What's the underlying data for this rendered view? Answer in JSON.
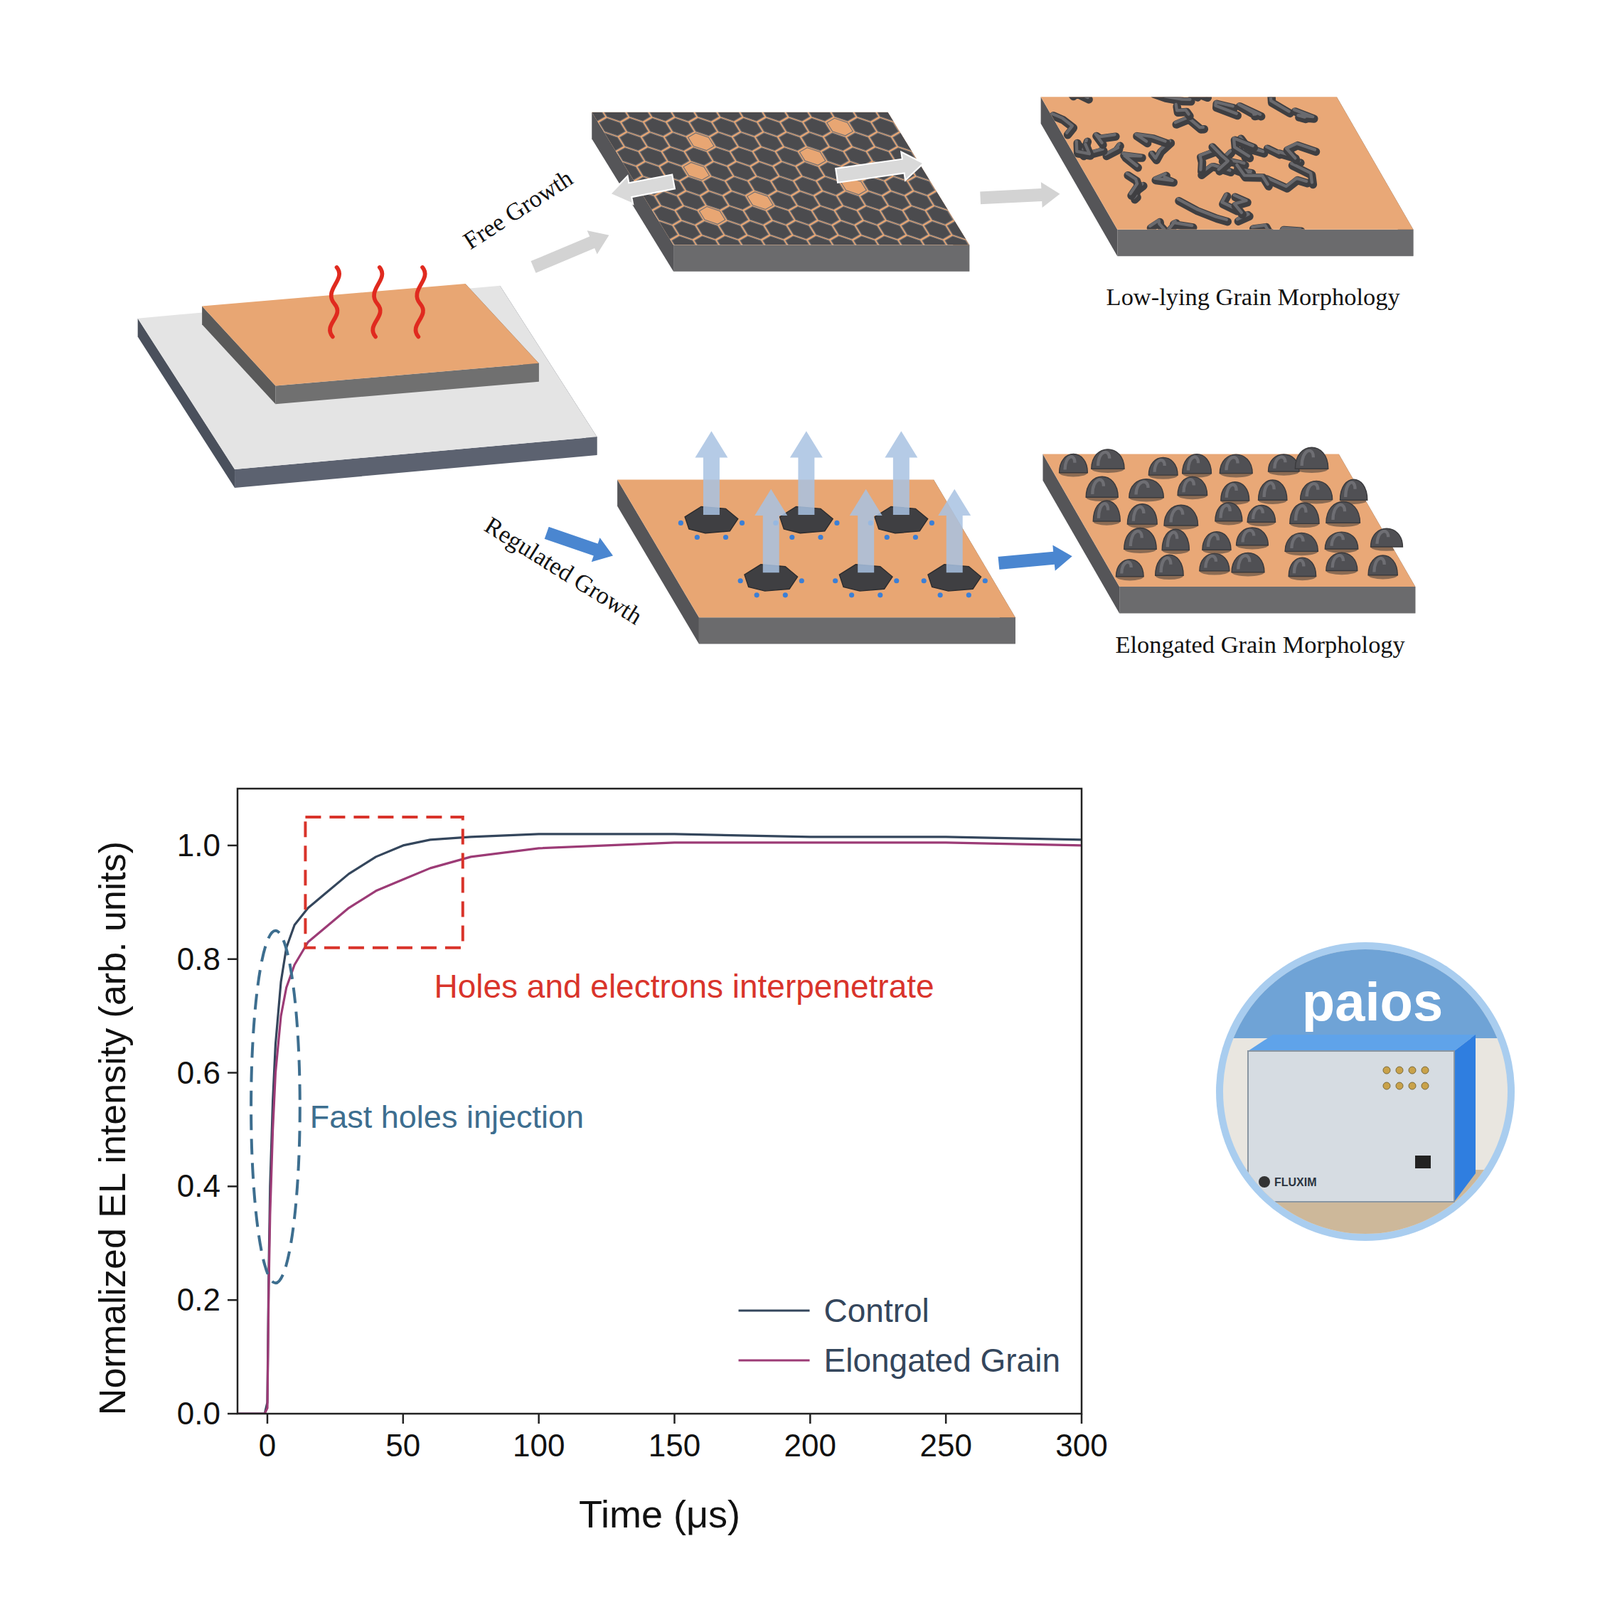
{
  "diagram": {
    "paths": [
      {
        "label": "Free Growth"
      },
      {
        "label": "Regulated Growth"
      }
    ],
    "outcomes": [
      {
        "label": "Low-lying Grain Morphology"
      },
      {
        "label": "Elongated Grain Morphology"
      }
    ]
  },
  "chart_data": {
    "type": "line",
    "x_label": "Time (μs)",
    "y_label": "Normalized EL intensity (arb. units)",
    "x": [
      -11,
      -5,
      -1,
      0,
      0.5,
      1,
      2,
      3,
      5,
      7,
      10,
      15,
      20,
      30,
      40,
      50,
      60,
      75,
      100,
      125,
      150,
      200,
      250,
      300
    ],
    "series": [
      {
        "name": "Control",
        "color": "#34465c",
        "values": [
          0,
          0,
          0,
          0.02,
          0.25,
          0.4,
          0.55,
          0.65,
          0.76,
          0.82,
          0.86,
          0.89,
          0.91,
          0.95,
          0.98,
          1.0,
          1.01,
          1.015,
          1.02,
          1.02,
          1.02,
          1.015,
          1.015,
          1.01
        ]
      },
      {
        "name": "Elongated Grain",
        "color": "#9c3b76",
        "values": [
          0,
          0,
          0,
          0.01,
          0.22,
          0.35,
          0.5,
          0.6,
          0.7,
          0.75,
          0.79,
          0.83,
          0.85,
          0.89,
          0.92,
          0.94,
          0.96,
          0.98,
          0.995,
          1.0,
          1.005,
          1.005,
          1.005,
          1.0
        ]
      }
    ],
    "xlim": [
      -11,
      300
    ],
    "ylim": [
      0,
      1.1
    ],
    "xticks": [
      0,
      50,
      100,
      150,
      200,
      250,
      300
    ],
    "yticks": [
      {
        "value": 0,
        "label": "0.0"
      },
      {
        "value": 0.2,
        "label": "0.2"
      },
      {
        "value": 0.4,
        "label": "0.4"
      },
      {
        "value": 0.6,
        "label": "0.6"
      },
      {
        "value": 0.8,
        "label": "0.8"
      },
      {
        "value": 1,
        "label": "1.0"
      }
    ],
    "grid": false,
    "legend": "lower right",
    "annotations": [
      {
        "text": "Holes and electrons interpenetrate",
        "shape": "rectangle",
        "x": [
          14,
          72
        ],
        "y": [
          0.82,
          1.05
        ]
      },
      {
        "text": "Fast holes injection",
        "shape": "ellipse",
        "x": [
          -6,
          12
        ],
        "y": [
          0.23,
          0.85
        ]
      }
    ]
  },
  "badge": {
    "title": "paios",
    "brand": "FLUXIM"
  }
}
